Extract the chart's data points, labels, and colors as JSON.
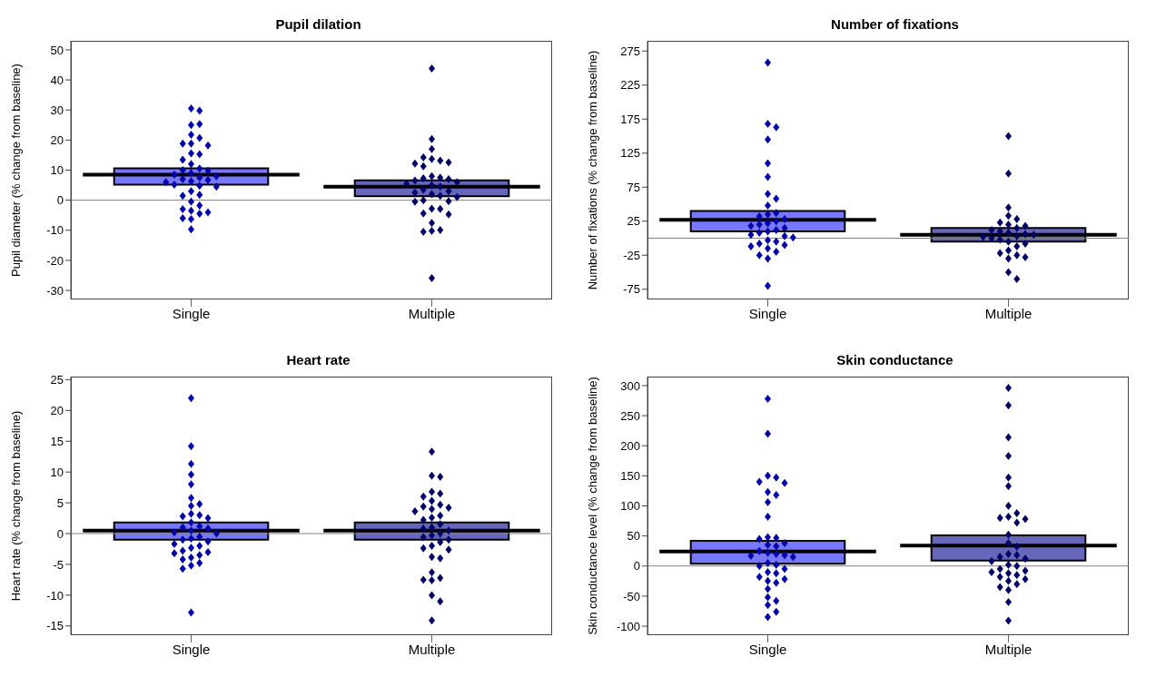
{
  "chart_data": [
    {
      "type": "box",
      "title": "Pupil dilation",
      "ylabel": "Pupil diameter (% change from baseline)",
      "categories": [
        "Single",
        "Multiple"
      ],
      "ylim": [
        -33,
        53
      ],
      "yticks": [
        -30,
        -20,
        -10,
        0,
        10,
        20,
        30,
        40,
        50
      ],
      "colors": [
        "#7777ff",
        "#6666bb"
      ],
      "marker": "diamond",
      "boxes": [
        {
          "low": 5.2,
          "q1": 5.2,
          "median": 8.5,
          "q3": 10.6,
          "high": 10.6
        },
        {
          "low": 1.3,
          "q1": 1.3,
          "median": 4.5,
          "q3": 6.6,
          "high": 6.6
        }
      ],
      "ref_lines": [
        {
          "axis": "y",
          "value": 0,
          "color": "#808080"
        }
      ],
      "series": [
        {
          "type": "scatter",
          "color": "#0000aa",
          "x": [
            "Single",
            "Single",
            "Single",
            "Single",
            "Single",
            "Single",
            "Single",
            "Single",
            "Single",
            "Single",
            "Single",
            "Single",
            "Single",
            "Single",
            "Single",
            "Single",
            "Single",
            "Single",
            "Single",
            "Single",
            "Single",
            "Single",
            "Single",
            "Single",
            "Single",
            "Single",
            "Single",
            "Single",
            "Single",
            "Single",
            "Single",
            "Single",
            "Single",
            "Single",
            "Single",
            "Single",
            "Single",
            "Single",
            "Single"
          ],
          "values": [
            30.5,
            29.8,
            25,
            25.3,
            21.8,
            20.7,
            18.8,
            18.8,
            18.2,
            15.6,
            15.3,
            13.5,
            12,
            10.5,
            10,
            9.8,
            9,
            8.5,
            8,
            7.5,
            7,
            6.7,
            6.3,
            6,
            5.2,
            4.8,
            4.5,
            3,
            1.8,
            1.5,
            -0.5,
            -1.8,
            -3,
            -3.5,
            -4,
            -4.5,
            -6,
            -6.3,
            -9.7
          ]
        },
        {
          "type": "scatter",
          "color": "#000066",
          "x": [
            "Multiple",
            "Multiple",
            "Multiple",
            "Multiple",
            "Multiple",
            "Multiple",
            "Multiple",
            "Multiple",
            "Multiple",
            "Multiple",
            "Multiple",
            "Multiple",
            "Multiple",
            "Multiple",
            "Multiple",
            "Multiple",
            "Multiple",
            "Multiple",
            "Multiple",
            "Multiple",
            "Multiple",
            "Multiple",
            "Multiple",
            "Multiple",
            "Multiple",
            "Multiple",
            "Multiple",
            "Multiple",
            "Multiple",
            "Multiple",
            "Multiple",
            "Multiple",
            "Multiple",
            "Multiple",
            "Multiple",
            "Multiple"
          ],
          "values": [
            43.8,
            20.3,
            17,
            13.7,
            13.2,
            14.2,
            12.6,
            12.2,
            11.3,
            8,
            7.5,
            7.3,
            7,
            6.5,
            6,
            5.5,
            5,
            4.5,
            3.5,
            3,
            2.5,
            2,
            1.5,
            1,
            0,
            -0.3,
            -0.5,
            -2.8,
            -2.9,
            -4.4,
            -4.7,
            -7.6,
            -9.9,
            -10.2,
            -10.5,
            -25.9
          ]
        }
      ]
    },
    {
      "type": "box",
      "title": "Number of fixations",
      "ylabel": "Number of fixations (% change from baseline)",
      "categories": [
        "Single",
        "Multiple"
      ],
      "ylim": [
        -90,
        290
      ],
      "yticks": [
        -75,
        -25,
        25,
        75,
        125,
        175,
        225,
        275
      ],
      "colors": [
        "#7777ff",
        "#6666bb"
      ],
      "marker": "diamond",
      "boxes": [
        {
          "low": 10,
          "q1": 10,
          "median": 27,
          "q3": 40,
          "high": 40
        },
        {
          "low": -5,
          "q1": -5,
          "median": 5,
          "q3": 15,
          "high": 15
        }
      ],
      "ref_lines": [
        {
          "axis": "y",
          "value": 0,
          "color": "#808080"
        }
      ],
      "series": [
        {
          "type": "scatter",
          "color": "#0000aa",
          "x": [
            "Single",
            "Single",
            "Single",
            "Single",
            "Single",
            "Single",
            "Single",
            "Single",
            "Single",
            "Single",
            "Single",
            "Single",
            "Single",
            "Single",
            "Single",
            "Single",
            "Single",
            "Single",
            "Single",
            "Single",
            "Single",
            "Single",
            "Single",
            "Single",
            "Single",
            "Single",
            "Single",
            "Single",
            "Single",
            "Single",
            "Single",
            "Single",
            "Single",
            "Single"
          ],
          "values": [
            258,
            168,
            163,
            145,
            110,
            90,
            65,
            58,
            48,
            37,
            35,
            32,
            28,
            25,
            22,
            20,
            18,
            15,
            12,
            10,
            8,
            5,
            3,
            1,
            -3,
            -5,
            -8,
            -10,
            -12,
            -15,
            -20,
            -25,
            -30,
            -70
          ]
        },
        {
          "type": "scatter",
          "color": "#000066",
          "x": [
            "Multiple",
            "Multiple",
            "Multiple",
            "Multiple",
            "Multiple",
            "Multiple",
            "Multiple",
            "Multiple",
            "Multiple",
            "Multiple",
            "Multiple",
            "Multiple",
            "Multiple",
            "Multiple",
            "Multiple",
            "Multiple",
            "Multiple",
            "Multiple",
            "Multiple",
            "Multiple",
            "Multiple",
            "Multiple",
            "Multiple",
            "Multiple",
            "Multiple",
            "Multiple",
            "Multiple",
            "Multiple"
          ],
          "values": [
            150,
            95,
            45,
            33,
            28,
            23,
            20,
            18,
            15,
            12,
            10,
            8,
            6,
            5,
            3,
            2,
            0,
            -2,
            -5,
            -8,
            -12,
            -18,
            -22,
            -25,
            -28,
            -30,
            -50,
            -60
          ]
        }
      ]
    },
    {
      "type": "box",
      "title": "Heart rate",
      "ylabel": "Heart rate (% change from baseline)",
      "categories": [
        "Single",
        "Multiple"
      ],
      "ylim": [
        -16.5,
        25.5
      ],
      "yticks": [
        -15,
        -10,
        -5,
        0,
        5,
        10,
        15,
        20,
        25
      ],
      "colors": [
        "#7777ff",
        "#6666bb"
      ],
      "marker": "diamond",
      "boxes": [
        {
          "low": -1,
          "q1": -1,
          "median": 0.5,
          "q3": 1.8,
          "high": 1.8
        },
        {
          "low": -1,
          "q1": -1,
          "median": 0.5,
          "q3": 1.8,
          "high": 1.8
        }
      ],
      "ref_lines": [
        {
          "axis": "y",
          "value": 0,
          "color": "#808080"
        }
      ],
      "series": [
        {
          "type": "scatter",
          "color": "#0000aa",
          "x": [
            "Single",
            "Single",
            "Single",
            "Single",
            "Single",
            "Single",
            "Single",
            "Single",
            "Single",
            "Single",
            "Single",
            "Single",
            "Single",
            "Single",
            "Single",
            "Single",
            "Single",
            "Single",
            "Single",
            "Single",
            "Single",
            "Single",
            "Single",
            "Single",
            "Single",
            "Single",
            "Single",
            "Single",
            "Single",
            "Single",
            "Single",
            "Single",
            "Single",
            "Single",
            "Single",
            "Single"
          ],
          "values": [
            22,
            14.2,
            11.3,
            9.6,
            8,
            5.8,
            4.8,
            4.5,
            3.2,
            3,
            2.8,
            2.5,
            1.8,
            1.2,
            1,
            0.8,
            0.5,
            0.2,
            0,
            -0.5,
            -0.8,
            -1,
            -1.3,
            -1.7,
            -2,
            -2.3,
            -2.8,
            -3,
            -3.2,
            -3.5,
            -3.9,
            -4.2,
            -4.8,
            -5.2,
            -5.7,
            -12.8
          ]
        },
        {
          "type": "scatter",
          "color": "#000066",
          "x": [
            "Multiple",
            "Multiple",
            "Multiple",
            "Multiple",
            "Multiple",
            "Multiple",
            "Multiple",
            "Multiple",
            "Multiple",
            "Multiple",
            "Multiple",
            "Multiple",
            "Multiple",
            "Multiple",
            "Multiple",
            "Multiple",
            "Multiple",
            "Multiple",
            "Multiple",
            "Multiple",
            "Multiple",
            "Multiple",
            "Multiple",
            "Multiple",
            "Multiple",
            "Multiple",
            "Multiple",
            "Multiple",
            "Multiple",
            "Multiple",
            "Multiple",
            "Multiple",
            "Multiple",
            "Multiple",
            "Multiple",
            "Multiple"
          ],
          "values": [
            13.3,
            9.4,
            9.2,
            6.8,
            6.5,
            6,
            5.3,
            4.7,
            4.4,
            4.2,
            4,
            3.6,
            2.9,
            2.6,
            2.2,
            1.5,
            1,
            0.8,
            0.5,
            0,
            -0.3,
            -0.6,
            -1,
            -1.4,
            -2,
            -2.4,
            -2.6,
            -3.8,
            -4,
            -6.3,
            -7.2,
            -7.5,
            -7.6,
            -10,
            -11,
            -14.1
          ]
        }
      ]
    },
    {
      "type": "box",
      "title": "Skin conductance",
      "ylabel": "Skin conductance level (% change from baseline)",
      "categories": [
        "Single",
        "Multiple"
      ],
      "ylim": [
        -115,
        315
      ],
      "yticks": [
        -100,
        -50,
        0,
        50,
        100,
        150,
        200,
        250,
        300
      ],
      "colors": [
        "#7777ff",
        "#6666bb"
      ],
      "marker": "diamond",
      "boxes": [
        {
          "low": 4,
          "q1": 4,
          "median": 24,
          "q3": 42,
          "high": 42
        },
        {
          "low": 9,
          "q1": 9,
          "median": 34,
          "q3": 51,
          "high": 51
        }
      ],
      "ref_lines": [
        {
          "axis": "y",
          "value": 0,
          "color": "#808080"
        }
      ],
      "series": [
        {
          "type": "scatter",
          "color": "#0000aa",
          "x": [
            "Single",
            "Single",
            "Single",
            "Single",
            "Single",
            "Single",
            "Single",
            "Single",
            "Single",
            "Single",
            "Single",
            "Single",
            "Single",
            "Single",
            "Single",
            "Single",
            "Single",
            "Single",
            "Single",
            "Single",
            "Single",
            "Single",
            "Single",
            "Single",
            "Single",
            "Single",
            "Single",
            "Single",
            "Single",
            "Single",
            "Single",
            "Single",
            "Single",
            "Single",
            "Single",
            "Single",
            "Single",
            "Single"
          ],
          "values": [
            278,
            220,
            150,
            147,
            140,
            138,
            123,
            118,
            106,
            82,
            48,
            47,
            45,
            38,
            35,
            33,
            25,
            22,
            20,
            18,
            17,
            15,
            5,
            2,
            0,
            -5,
            -10,
            -12,
            -18,
            -22,
            -25,
            -28,
            -38,
            -52,
            -58,
            -65,
            -76,
            -85
          ]
        },
        {
          "type": "scatter",
          "color": "#000066",
          "x": [
            "Multiple",
            "Multiple",
            "Multiple",
            "Multiple",
            "Multiple",
            "Multiple",
            "Multiple",
            "Multiple",
            "Multiple",
            "Multiple",
            "Multiple",
            "Multiple",
            "Multiple",
            "Multiple",
            "Multiple",
            "Multiple",
            "Multiple",
            "Multiple",
            "Multiple",
            "Multiple",
            "Multiple",
            "Multiple",
            "Multiple",
            "Multiple",
            "Multiple",
            "Multiple",
            "Multiple",
            "Multiple",
            "Multiple",
            "Multiple",
            "Multiple",
            "Multiple",
            "Multiple",
            "Multiple",
            "Multiple"
          ],
          "values": [
            296,
            267,
            214,
            183,
            147,
            133,
            100,
            88,
            82,
            80,
            78,
            72,
            52,
            38,
            32,
            20,
            18,
            15,
            12,
            8,
            2,
            0,
            -5,
            -8,
            -10,
            -12,
            -15,
            -18,
            -22,
            -25,
            -30,
            -35,
            -40,
            -60,
            -91
          ]
        }
      ]
    }
  ]
}
